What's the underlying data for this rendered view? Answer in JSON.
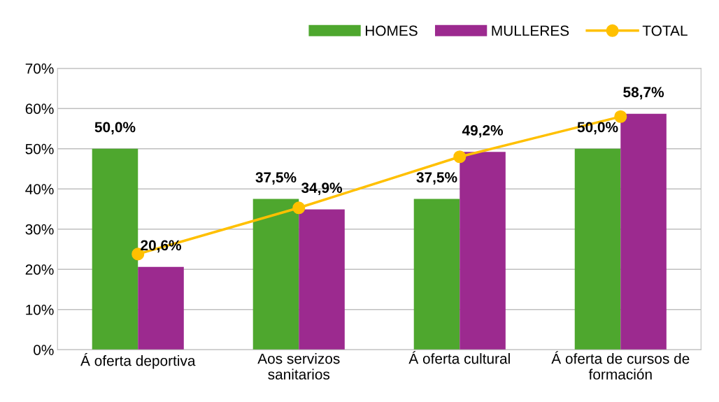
{
  "chart_data": {
    "type": "bar",
    "categories": [
      "Á oferta deportiva",
      "Aos servizos\nsanitarios",
      "Á oferta cultural",
      "Á oferta de cursos de\nformación"
    ],
    "series": [
      {
        "name": "HOMES",
        "color": "#4ea72e",
        "values": [
          50.0,
          37.5,
          37.5,
          50.0
        ],
        "value_labels": [
          "50,0%",
          "37,5%",
          "37,5%",
          "50,0%"
        ]
      },
      {
        "name": "MULLERES",
        "color": "#9c2a8f",
        "values": [
          20.6,
          34.9,
          49.2,
          58.7
        ],
        "value_labels": [
          "20,6%",
          "34,9%",
          "49,2%",
          "58,7%"
        ]
      },
      {
        "name": "TOTAL",
        "type": "line",
        "color": "#ffc000",
        "marker": "circle",
        "values": [
          23.8,
          35.3,
          48.0,
          58.0
        ]
      }
    ],
    "ylim": [
      0,
      70
    ],
    "yticks": [
      {
        "value": 0,
        "label": "0%"
      },
      {
        "value": 10,
        "label": "10%"
      },
      {
        "value": 20,
        "label": "20%"
      },
      {
        "value": 30,
        "label": "30%"
      },
      {
        "value": 40,
        "label": "40%"
      },
      {
        "value": 50,
        "label": "50%"
      },
      {
        "value": 60,
        "label": "60%"
      },
      {
        "value": 70,
        "label": "70%"
      }
    ],
    "grid": "y",
    "legend": "top right"
  }
}
